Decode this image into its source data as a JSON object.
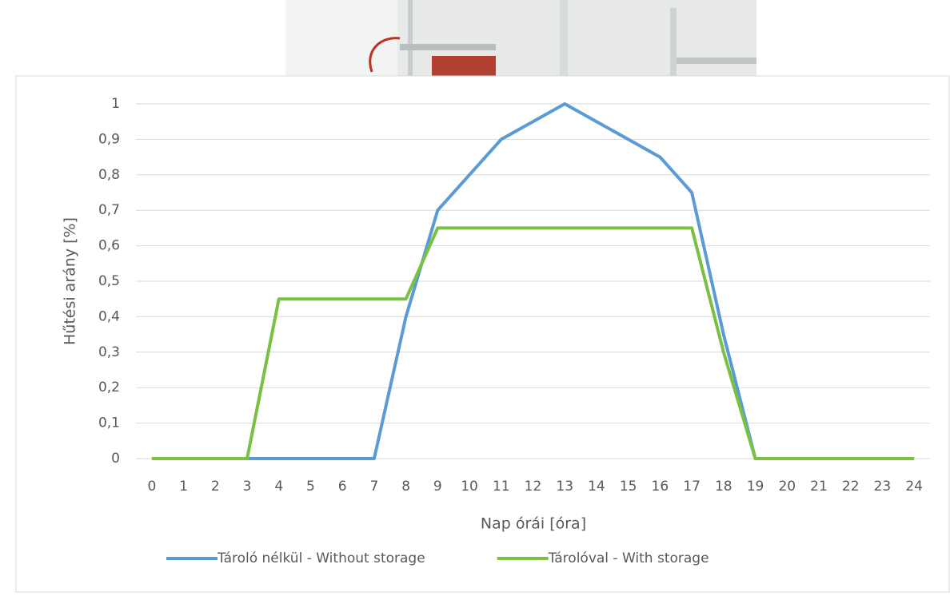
{
  "chart_data": {
    "type": "line",
    "categories": [
      "0",
      "1",
      "2",
      "3",
      "4",
      "5",
      "6",
      "7",
      "8",
      "9",
      "10",
      "11",
      "12",
      "13",
      "14",
      "15",
      "16",
      "17",
      "18",
      "19",
      "20",
      "21",
      "22",
      "23",
      "24"
    ],
    "x_label": "Nap órái [óra]",
    "y_label": "Hűtési arány [%]",
    "series": [
      {
        "name": "Tároló nélkül - Without storage",
        "color": "#5b9bd5",
        "values": [
          0,
          0,
          0,
          0,
          0,
          0,
          0,
          0,
          0.4,
          0.7,
          0.8,
          0.9,
          0.95,
          1,
          0.95,
          0.9,
          0.85,
          0.75,
          0.35,
          0,
          0,
          0,
          0,
          0,
          0
        ]
      },
      {
        "name": "Tárolóval - With storage",
        "color": "#7ac143",
        "values": [
          0,
          0,
          0,
          0,
          0.45,
          0.45,
          0.45,
          0.45,
          0.45,
          0.65,
          0.65,
          0.65,
          0.65,
          0.65,
          0.65,
          0.65,
          0.65,
          0.65,
          0.3,
          0,
          0,
          0,
          0,
          0,
          0
        ]
      }
    ],
    "ylim": [
      0,
      1
    ],
    "yticks": [
      0,
      {
        "value": 0.1,
        "label": "0,1"
      },
      {
        "value": 0.2,
        "label": "0,2"
      },
      {
        "value": 0.3,
        "label": "0,3"
      },
      {
        "value": 0.4,
        "label": "0,4"
      },
      {
        "value": 0.5,
        "label": "0,5"
      },
      {
        "value": 0.6,
        "label": "0,6"
      },
      {
        "value": 0.7,
        "label": "0,7"
      },
      {
        "value": 0.8,
        "label": "0,8"
      },
      {
        "value": 0.9,
        "label": "0,9"
      },
      1
    ],
    "grid": true,
    "legend": "bottom"
  }
}
